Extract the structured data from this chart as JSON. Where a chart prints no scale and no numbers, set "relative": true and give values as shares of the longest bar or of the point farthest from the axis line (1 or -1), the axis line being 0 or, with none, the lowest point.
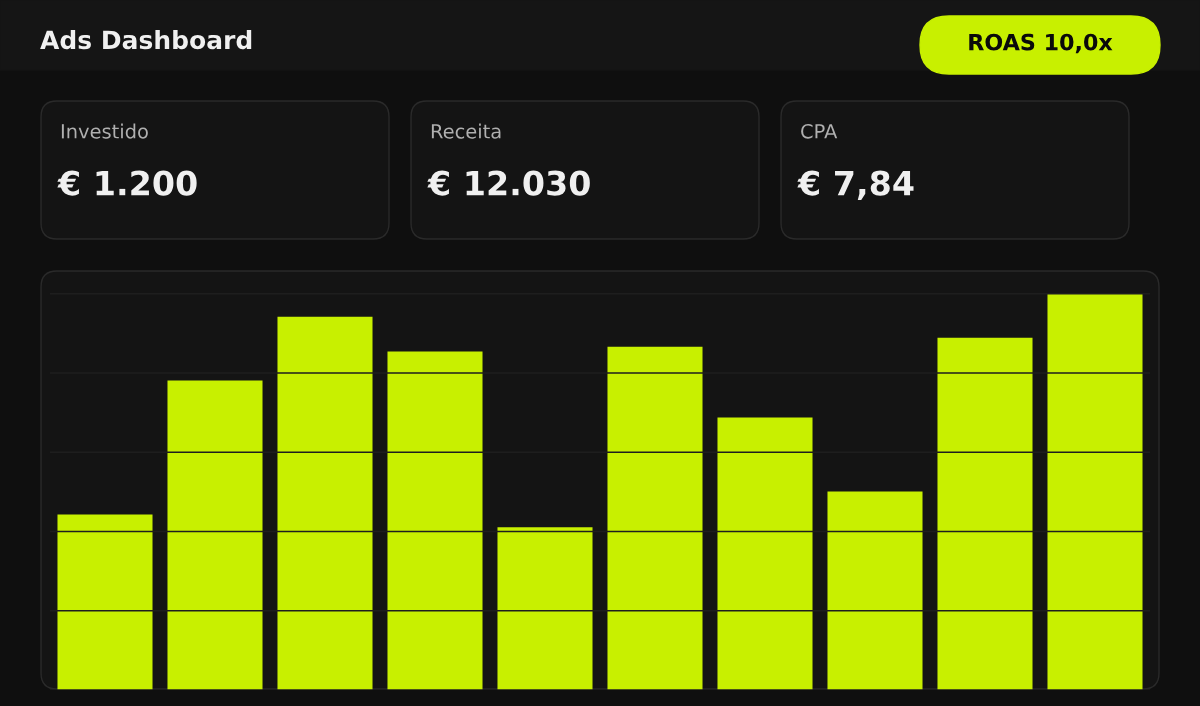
{
  "chart_data": [
    {
      "type": "other",
      "title": "Ads Dashboard",
      "annotations": [
        "ROAS 10,0x",
        "Investido",
        "€ 1.200",
        "Receita",
        "€ 12.030",
        "CPA",
        "€ 7,84"
      ]
    },
    {
      "type": "bar",
      "categories": [
        null,
        null,
        null,
        null,
        null,
        null,
        null,
        null,
        null,
        null
      ],
      "values": [
        0.443,
        0.781,
        0.942,
        0.854,
        0.411,
        0.866,
        0.688,
        0.501,
        0.889,
        1.0
      ],
      "color": "#c8f000",
      "relative": true,
      "grid": "y"
    }
  ]
}
